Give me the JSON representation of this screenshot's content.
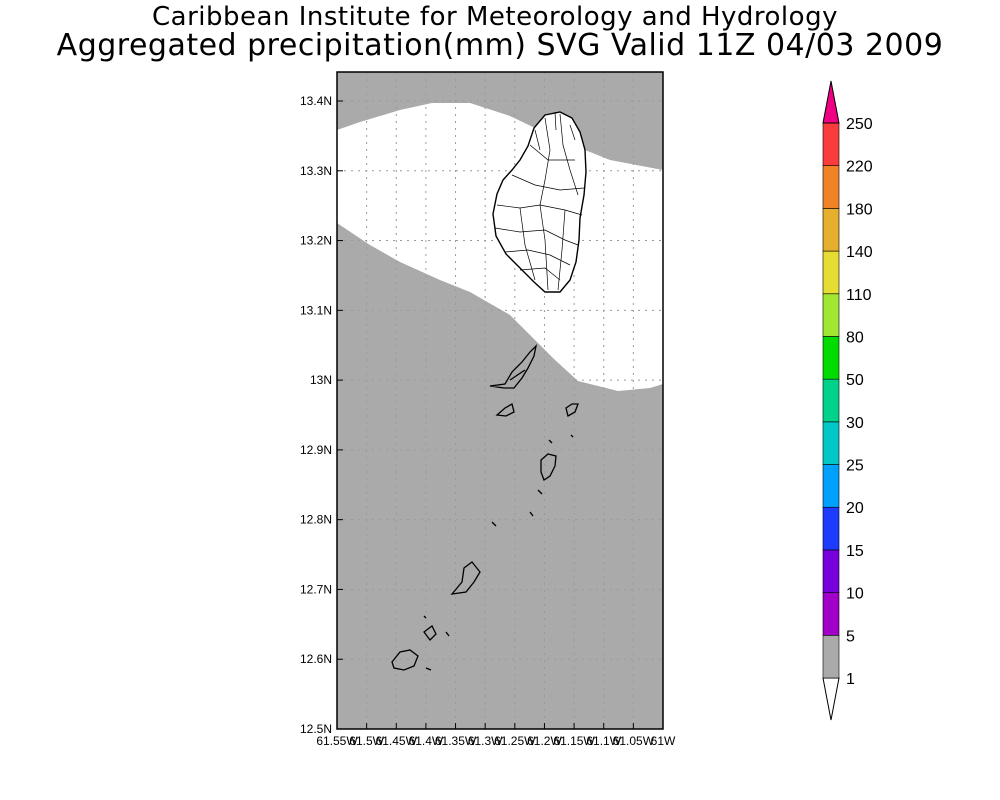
{
  "title_line1": "Caribbean Institute for Meteorology and Hydrology",
  "title_line2": "Aggregated precipitation(mm) SVG Valid 11Z 04/03 2009",
  "map": {
    "lat_ticks": [
      "13.4N",
      "13.3N",
      "13.2N",
      "13.1N",
      "13N",
      "12.9N",
      "12.8N",
      "12.7N",
      "12.6N",
      "12.5N"
    ],
    "lon_ticks": [
      "61.55W",
      "61.5W",
      "61.45W",
      "61.4W",
      "61.35W",
      "61.3W",
      "61.25W",
      "61.2W",
      "61.15W",
      "61.1W",
      "61.05W",
      "61W"
    ],
    "colors": {
      "dry": "#aaaaaa",
      "wet": "#ffffff",
      "grid": "#9a9a9a"
    }
  },
  "colorbar": {
    "labels": [
      "1",
      "5",
      "10",
      "15",
      "20",
      "25",
      "30",
      "50",
      "80",
      "110",
      "140",
      "180",
      "220",
      "250"
    ],
    "colors": [
      "#aaaaaa",
      "#a000c8",
      "#7800dc",
      "#1e3cff",
      "#00a0ff",
      "#00c8c8",
      "#00d28c",
      "#00dc00",
      "#a0e632",
      "#e6dc32",
      "#e6af2d",
      "#f08228",
      "#fa3c3c",
      "#f00082"
    ],
    "bottom_triangle_color": "#ffffff",
    "top_triangle_color": "#f00082"
  }
}
